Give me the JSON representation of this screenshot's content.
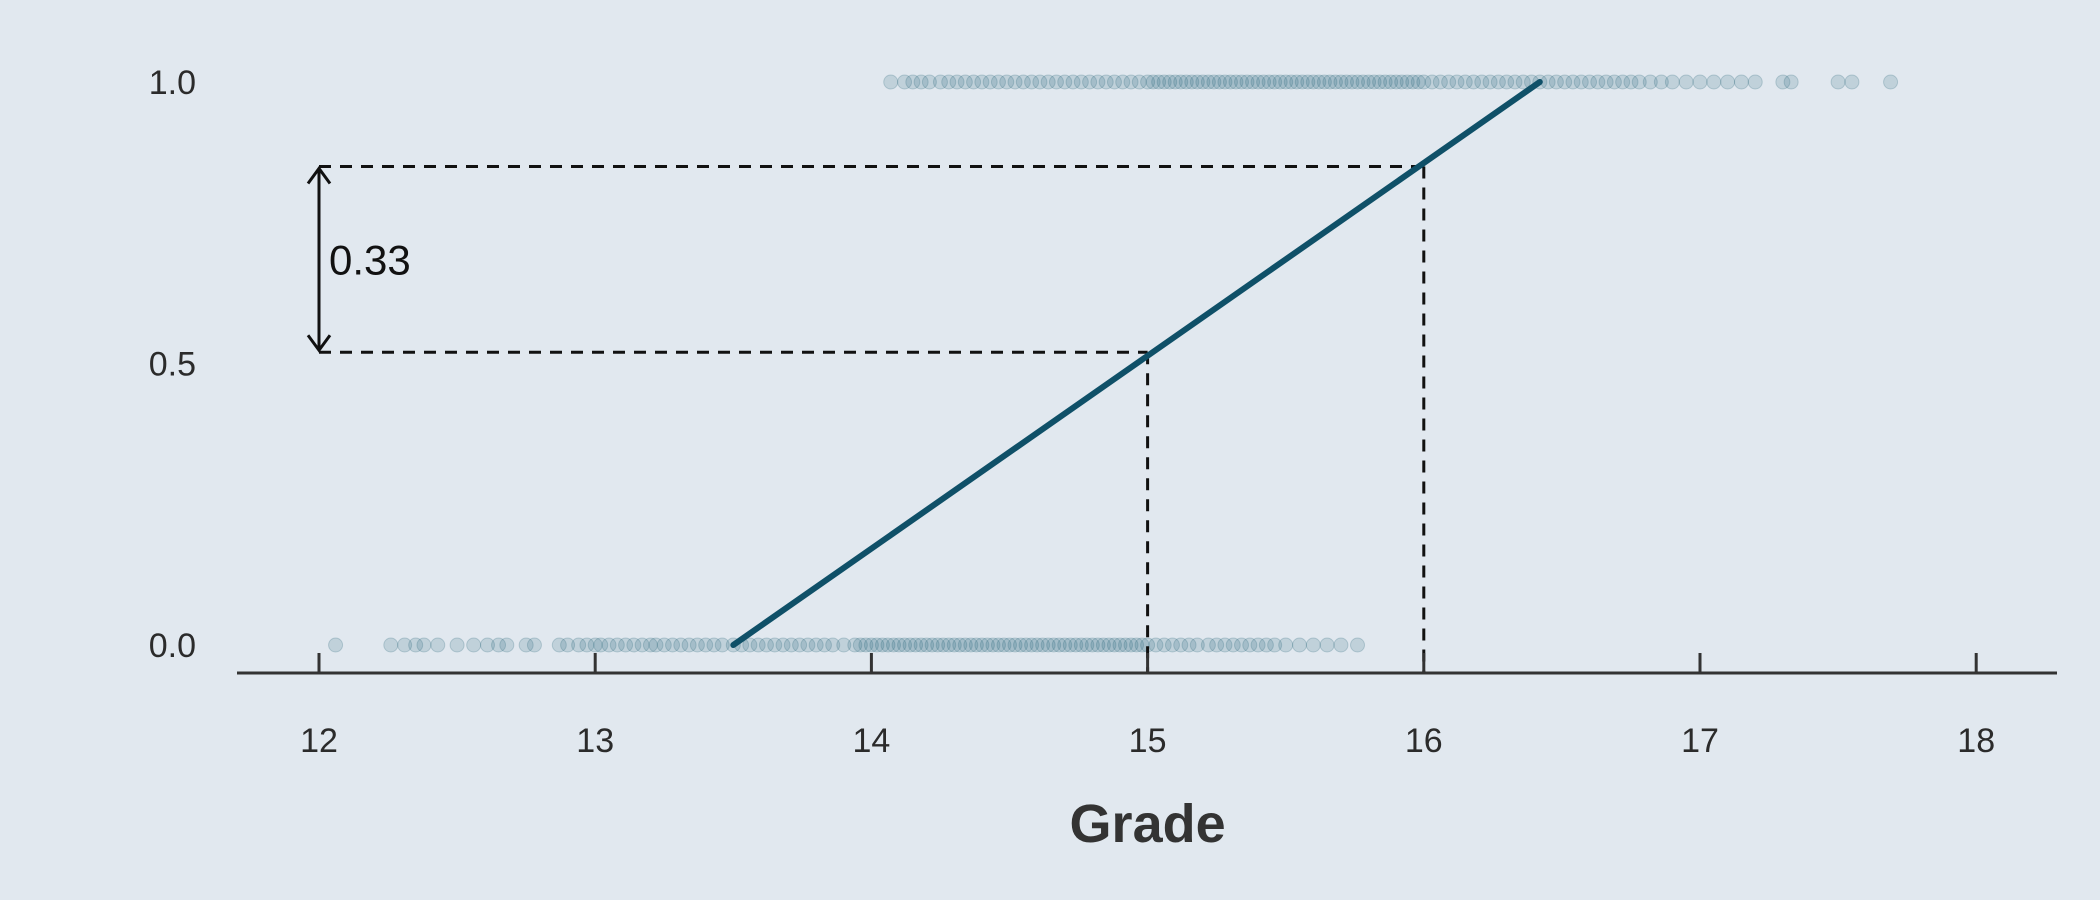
{
  "chart_data": {
    "type": "scatter",
    "title": "",
    "xlabel": "Grade",
    "ylabel": "",
    "xlim": [
      11.7,
      18.3
    ],
    "ylim": [
      0,
      1
    ],
    "x_ticks": [
      "12",
      "13",
      "14",
      "15",
      "16",
      "17",
      "18"
    ],
    "y_ticks": [
      "0.0",
      "0.5",
      "1.0"
    ],
    "grid": false,
    "legend": "none",
    "colors": {
      "points": "#1f5f74",
      "line": "#0f5068",
      "axis": "#333333",
      "background": "#e1e8ef"
    },
    "points_y0": [
      12.06,
      12.26,
      12.31,
      12.35,
      12.38,
      12.43,
      12.5,
      12.56,
      12.61,
      12.65,
      12.68,
      12.75,
      12.78,
      12.87,
      12.9,
      12.94,
      12.97,
      13.0,
      13.02,
      13.05,
      13.08,
      13.11,
      13.14,
      13.17,
      13.2,
      13.22,
      13.25,
      13.28,
      13.31,
      13.34,
      13.37,
      13.4,
      13.43,
      13.46,
      13.5,
      13.53,
      13.56,
      13.59,
      13.62,
      13.65,
      13.68,
      13.71,
      13.74,
      13.77,
      13.8,
      13.83,
      13.86,
      13.9,
      13.94,
      13.96,
      13.98,
      14.0,
      14.02,
      14.04,
      14.06,
      14.08,
      14.1,
      14.12,
      14.14,
      14.16,
      14.18,
      14.2,
      14.22,
      14.24,
      14.26,
      14.28,
      14.3,
      14.32,
      14.34,
      14.36,
      14.38,
      14.4,
      14.42,
      14.44,
      14.46,
      14.48,
      14.5,
      14.52,
      14.54,
      14.56,
      14.58,
      14.6,
      14.62,
      14.64,
      14.66,
      14.68,
      14.7,
      14.72,
      14.74,
      14.76,
      14.78,
      14.8,
      14.82,
      14.84,
      14.86,
      14.88,
      14.9,
      14.92,
      14.94,
      14.96,
      14.98,
      15.0,
      15.03,
      15.06,
      15.09,
      15.12,
      15.15,
      15.18,
      15.22,
      15.25,
      15.28,
      15.31,
      15.34,
      15.37,
      15.4,
      15.43,
      15.46,
      15.5,
      15.55,
      15.6,
      15.65,
      15.7,
      15.76
    ],
    "points_y1": [
      14.07,
      14.12,
      14.15,
      14.18,
      14.21,
      14.25,
      14.28,
      14.31,
      14.34,
      14.37,
      14.4,
      14.43,
      14.46,
      14.49,
      14.52,
      14.55,
      14.58,
      14.61,
      14.64,
      14.67,
      14.7,
      14.73,
      14.76,
      14.79,
      14.82,
      14.85,
      14.88,
      14.91,
      14.94,
      14.97,
      15.0,
      15.02,
      15.04,
      15.06,
      15.08,
      15.1,
      15.12,
      15.14,
      15.16,
      15.18,
      15.2,
      15.22,
      15.24,
      15.26,
      15.28,
      15.3,
      15.32,
      15.34,
      15.36,
      15.38,
      15.4,
      15.42,
      15.44,
      15.46,
      15.48,
      15.5,
      15.52,
      15.54,
      15.56,
      15.58,
      15.6,
      15.62,
      15.64,
      15.66,
      15.68,
      15.7,
      15.72,
      15.74,
      15.76,
      15.78,
      15.8,
      15.82,
      15.84,
      15.86,
      15.88,
      15.9,
      15.92,
      15.94,
      15.96,
      15.98,
      16.0,
      16.03,
      16.06,
      16.09,
      16.12,
      16.15,
      16.18,
      16.21,
      16.24,
      16.27,
      16.3,
      16.33,
      16.36,
      16.39,
      16.42,
      16.45,
      16.48,
      16.51,
      16.54,
      16.57,
      16.6,
      16.63,
      16.66,
      16.69,
      16.72,
      16.75,
      16.78,
      16.82,
      16.86,
      16.9,
      16.95,
      17.0,
      17.05,
      17.1,
      17.15,
      17.2,
      17.3,
      17.33,
      17.5,
      17.55,
      17.69
    ],
    "fit_line": {
      "x": [
        13.5,
        16.42
      ],
      "y": [
        0.0,
        1.0
      ]
    },
    "guides": [
      {
        "x": 15.0,
        "y": 0.52
      },
      {
        "x": 16.0,
        "y": 0.85
      }
    ],
    "annotation": {
      "label": "0.33",
      "x": 12.0,
      "y_from": 0.52,
      "y_to": 0.85
    }
  }
}
